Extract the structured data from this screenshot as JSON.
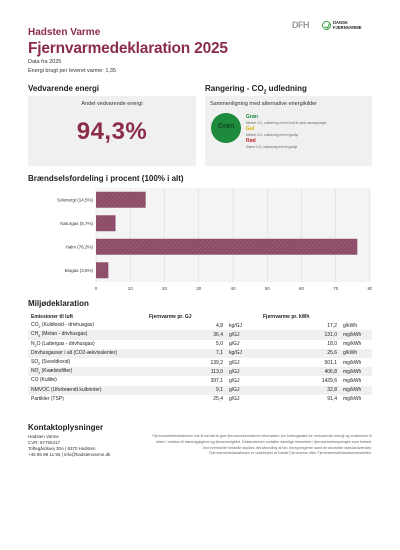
{
  "header": {
    "company": "Hadsten Varme",
    "title": "Fjernvarmedeklaration 2025",
    "data_from": "Data fra 2025",
    "energy_used": "Energi brugt per leveret varme: 1,35",
    "logo_left_text": "DFH",
    "logo_right_line1": "DANSK",
    "logo_right_line2": "FJERNVARME"
  },
  "renewable": {
    "heading": "Vedvarende energi",
    "label": "Andel vedvarende energi",
    "value": "94,3%"
  },
  "ranking": {
    "heading_prefix": "Rangering - CO",
    "heading_sub": "2",
    "heading_suffix": " udledning",
    "subtitle": "Sammenligning med alternative energikilder",
    "badge": "Grøn",
    "legend": [
      {
        "title": "Grøn",
        "color": "#1d8a3c",
        "desc": "Mindre CO₂ udledning end en luft til vand varmepumpe"
      },
      {
        "title": "Gul",
        "color": "#e0b000",
        "desc": "Mindre CO₂ udledning end et gasfyr"
      },
      {
        "title": "Rød",
        "color": "#c0282d",
        "desc": "Større CO₂ udledning end et gasfyr"
      }
    ],
    "badge_color": "#1d8a3c"
  },
  "fuel": {
    "heading": "Brændselsfordeling i procent (100% i alt)",
    "bar_color": "#8b4a66",
    "chart_data": {
      "type": "bar",
      "orientation": "horizontal",
      "categories": [
        "Solenergi (14,5%)",
        "Naturgas (5,7%)",
        "Halm (76,3%)",
        "Biogas (3,6%)"
      ],
      "values": [
        14.5,
        5.7,
        76.3,
        3.6
      ],
      "xlim": [
        0,
        80
      ],
      "xticks": [
        0,
        10,
        20,
        30,
        40,
        50,
        60,
        70,
        80
      ],
      "grid": true
    }
  },
  "env": {
    "heading": "Miljødeklaration",
    "col_emission": "Emissioner til luft",
    "col_gj": "Fjernvarme pr. GJ",
    "col_kwh": "Fjernvarme pr. kWh",
    "rows": [
      {
        "pre": "CO",
        "sub": "2",
        "post": " (Kuldioxid - drivhusgas)",
        "gj": "4,8",
        "gj_unit": "kg/GJ",
        "kwh": "17,2",
        "kwh_unit": "g/kWh"
      },
      {
        "pre": "CH",
        "sub": "4",
        "post": " (Metan - drivhusgas)",
        "gj": "36,4",
        "gj_unit": "g/GJ",
        "kwh": "131,0",
        "kwh_unit": "mg/kWh"
      },
      {
        "pre": "N",
        "sub": "2",
        "post": "O (Lattergas - drivhusgas)",
        "gj": "5,0",
        "gj_unit": "g/GJ",
        "kwh": "18,0",
        "kwh_unit": "mg/kWh"
      },
      {
        "pre": "Drivhusgasser i alt (CO2-ækvivalenter)",
        "sub": "",
        "post": "",
        "gj": "7,1",
        "gj_unit": "kg/GJ",
        "kwh": "25,6",
        "kwh_unit": "g/kWh"
      },
      {
        "pre": "SO",
        "sub": "2",
        "post": " (Svovldioxid)",
        "gj": "139,2",
        "gj_unit": "g/GJ",
        "kwh": "501,1",
        "kwh_unit": "mg/kWh"
      },
      {
        "pre": "NO",
        "sub": "x",
        "post": " (Kvælstofilter)",
        "gj": "113,0",
        "gj_unit": "g/GJ",
        "kwh": "406,8",
        "kwh_unit": "mg/kWh"
      },
      {
        "pre": "CO (Kulilte)",
        "sub": "",
        "post": "",
        "gj": "397,1",
        "gj_unit": "g/GJ",
        "kwh": "1429,6",
        "kwh_unit": "mg/kWh"
      },
      {
        "pre": "NMVOC (Uforbrændt kulbrinter)",
        "sub": "",
        "post": "",
        "gj": "9,1",
        "gj_unit": "g/GJ",
        "kwh": "32,8",
        "kwh_unit": "mg/kWh"
      },
      {
        "pre": "Partikler (TSP)",
        "sub": "",
        "post": "",
        "gj": "25,4",
        "gj_unit": "g/GJ",
        "kwh": "91,4",
        "kwh_unit": "mg/kWh"
      }
    ]
  },
  "contact": {
    "heading": "Kontaktoplysninger",
    "lines": [
      "Hadsten Varme",
      "CVR: 67755417",
      "Toftegårdsvej 30A | 8370 Hadsten",
      "+45 86 98 11 55 | info@hadstenvarme.dk"
    ],
    "note_lines": [
      "Fjernvarmedeklarationen har til formål at give fjernvarmekunderne information om forbrugsdata for vedvarende energi og emissioner til",
      "luften i relation til bæredygtighed og klimavenlighed. Deklarationen omfatter samtlige elementer i fjernvarmeforsyningen som helhed.",
      "Ved eventuelle forskelle skyldes det afrunding af tal i beregningerne samt de anvendte standardværdier.",
      "Fjernvarmedeklarationen er udarbejdet af Dansk Fjernvarme efter Fjernvarmedeklarationsmodellen."
    ]
  }
}
